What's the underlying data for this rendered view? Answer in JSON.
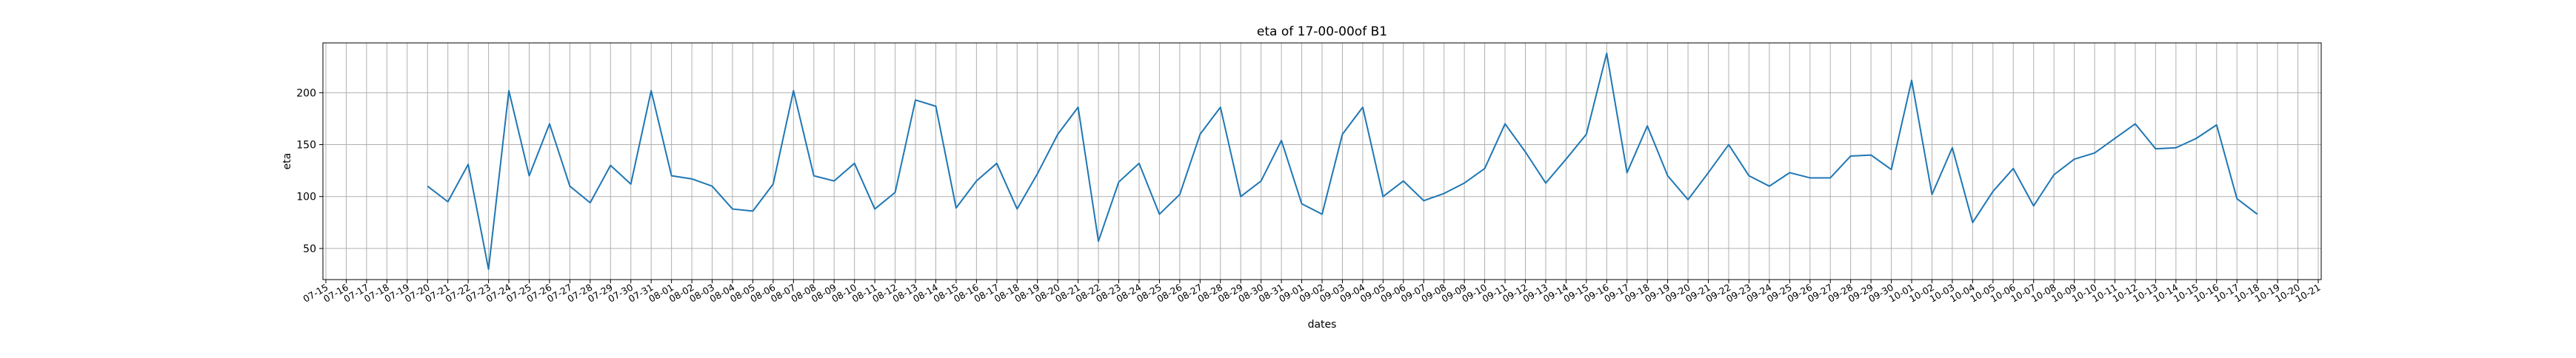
{
  "chart_data": {
    "type": "line",
    "title": "eta of 17-00-00of B1",
    "xlabel": "dates",
    "ylabel": "eta",
    "grid": true,
    "ylim": [
      20,
      248
    ],
    "yticks": [
      50,
      100,
      150,
      200
    ],
    "line_color": "#1f77b4",
    "x": [
      "07-15",
      "07-16",
      "07-17",
      "07-18",
      "07-19",
      "07-20",
      "07-21",
      "07-22",
      "07-23",
      "07-24",
      "07-25",
      "07-26",
      "07-27",
      "07-28",
      "07-29",
      "07-30",
      "07-31",
      "08-01",
      "08-02",
      "08-03",
      "08-04",
      "08-05",
      "08-06",
      "08-07",
      "08-08",
      "08-09",
      "08-10",
      "08-11",
      "08-12",
      "08-13",
      "08-14",
      "08-15",
      "08-16",
      "08-17",
      "08-18",
      "08-19",
      "08-20",
      "08-21",
      "08-22",
      "08-23",
      "08-24",
      "08-25",
      "08-26",
      "08-27",
      "08-28",
      "08-29",
      "08-30",
      "08-31",
      "09-01",
      "09-02",
      "09-03",
      "09-04",
      "09-05",
      "09-06",
      "09-07",
      "09-08",
      "09-09",
      "09-10",
      "09-11",
      "09-12",
      "09-13",
      "09-14",
      "09-15",
      "09-16",
      "09-17",
      "09-18",
      "09-19",
      "09-20",
      "09-21",
      "09-22",
      "09-23",
      "09-24",
      "09-25",
      "09-26",
      "09-27",
      "09-28",
      "09-29",
      "09-30",
      "10-01",
      "10-02",
      "10-03",
      "10-04",
      "10-05",
      "10-06",
      "10-07",
      "10-08",
      "10-09",
      "10-10",
      "10-11",
      "10-12",
      "10-13",
      "10-14",
      "10-15",
      "10-16",
      "10-17",
      "10-18",
      "10-19",
      "10-20",
      "10-21"
    ],
    "series": [
      {
        "values": [
          null,
          null,
          null,
          null,
          null,
          110,
          95,
          131,
          30,
          202,
          120,
          170,
          110,
          94,
          130,
          112,
          202,
          120,
          117,
          110,
          88,
          86,
          112,
          202,
          120,
          115,
          132,
          88,
          104,
          193,
          187,
          89,
          115,
          132,
          88,
          122,
          160,
          186,
          57,
          114,
          132,
          83,
          102,
          160,
          186,
          100,
          115,
          154,
          93,
          83,
          160,
          186,
          100,
          115,
          96,
          103,
          113,
          127,
          170,
          143,
          113,
          136,
          160,
          238,
          123,
          168,
          120,
          97,
          123,
          150,
          120,
          110,
          123,
          118,
          118,
          139,
          140,
          126,
          212,
          102,
          147,
          75,
          105,
          127,
          91,
          121,
          136,
          142,
          156,
          170,
          146,
          147,
          156,
          169,
          98,
          83,
          null,
          null,
          null
        ]
      }
    ]
  }
}
